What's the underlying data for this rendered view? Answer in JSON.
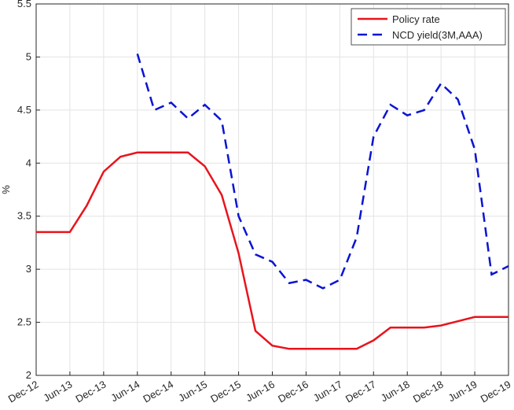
{
  "chart_data": {
    "type": "line",
    "ylabel": "%",
    "categories": [
      "Dec-12",
      null,
      "Jun-13",
      null,
      "Dec-13",
      null,
      "Jun-14",
      null,
      "Dec-14",
      null,
      "Jun-15",
      null,
      "Dec-15",
      null,
      "Jun-16",
      null,
      "Dec-16",
      null,
      "Jun-17",
      null,
      "Dec-17",
      null,
      "Jun-18",
      null,
      "Dec-18",
      null,
      "Jun-19",
      null,
      "Dec-19"
    ],
    "series": [
      {
        "name": "Policy rate",
        "color": "#e8141c",
        "dash": "solid",
        "values": [
          3.35,
          3.35,
          3.35,
          3.6,
          3.92,
          4.06,
          4.1,
          4.1,
          4.1,
          4.1,
          3.97,
          3.7,
          3.15,
          2.42,
          2.28,
          2.25,
          2.25,
          2.25,
          2.25,
          2.25,
          2.33,
          2.45,
          2.45,
          2.45,
          2.47,
          2.51,
          2.55,
          2.55,
          2.55
        ]
      },
      {
        "name": "NCD yield(3M,AAA)",
        "color": "#0a14d2",
        "dash": "dashed",
        "values": [
          null,
          null,
          null,
          null,
          null,
          null,
          5.03,
          4.5,
          4.57,
          4.42,
          4.55,
          4.4,
          3.5,
          3.14,
          3.07,
          2.87,
          2.9,
          2.82,
          2.9,
          3.3,
          4.25,
          4.55,
          4.45,
          4.5,
          4.75,
          4.6,
          4.13,
          2.95,
          3.03
        ]
      }
    ],
    "ylim": [
      2,
      5.5
    ],
    "yticks": [
      2,
      2.5,
      3,
      3.5,
      4,
      4.5,
      5,
      5.5
    ],
    "grid": true,
    "legend": "top-right"
  }
}
